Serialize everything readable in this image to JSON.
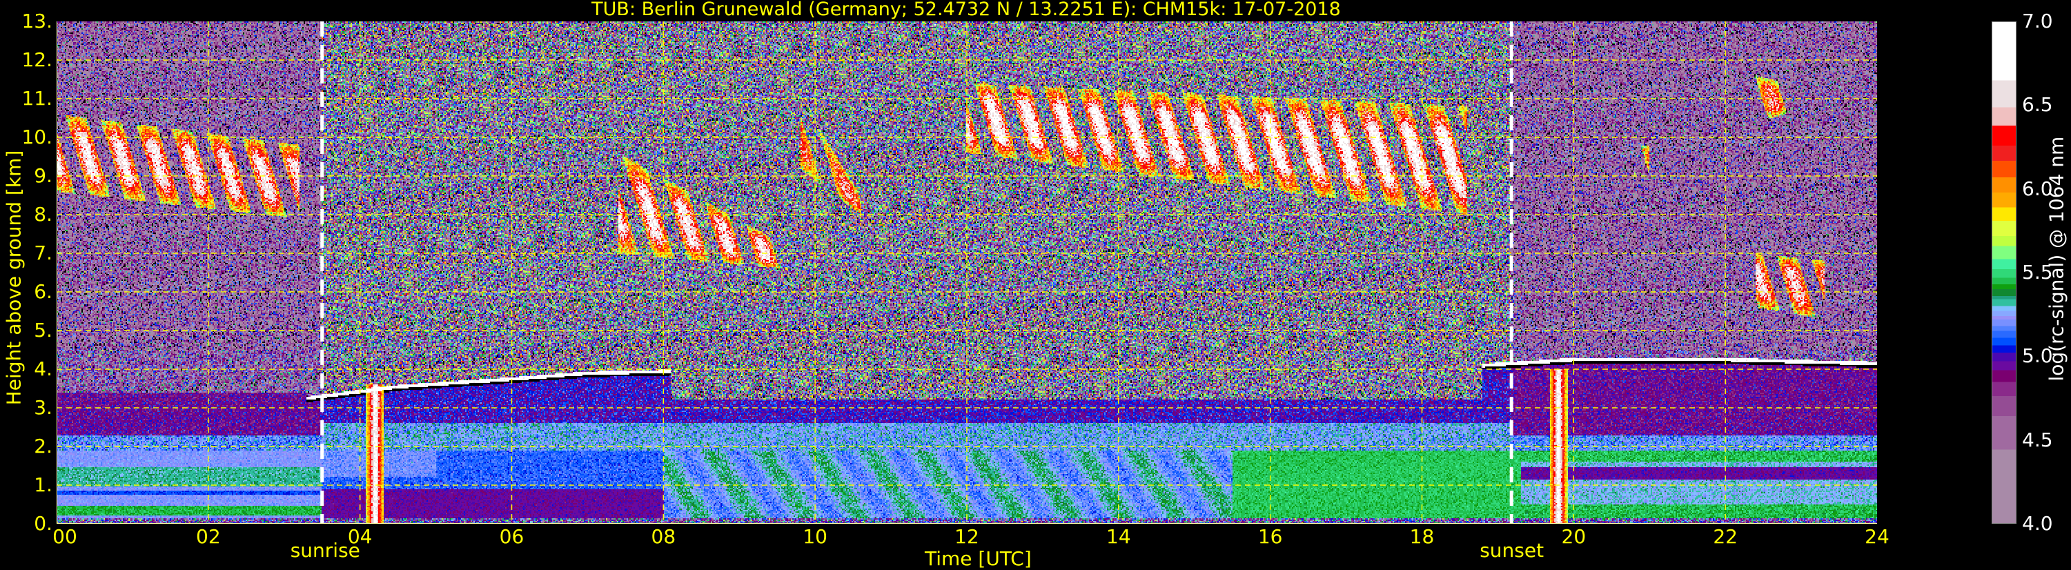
{
  "chart_data": {
    "type": "heatmap",
    "title": "TUB: Berlin Grunewald (Germany; 52.4732 N / 13.2251 E):    CHM15k: 17-07-2018",
    "xlabel": "Time [UTC]",
    "ylabel": "Height above ground [km]",
    "xlim": [
      0,
      24
    ],
    "ylim": [
      0,
      13
    ],
    "x_ticks": [
      0,
      2,
      4,
      6,
      8,
      10,
      12,
      14,
      16,
      18,
      20,
      22,
      24
    ],
    "x_tick_labels": [
      "00",
      "02",
      "04",
      "06",
      "08",
      "10",
      "12",
      "14",
      "16",
      "18",
      "20",
      "22",
      "24"
    ],
    "y_ticks": [
      0,
      1,
      2,
      3,
      4,
      5,
      6,
      7,
      8,
      9,
      10,
      11,
      12,
      13
    ],
    "y_tick_labels": [
      "0.",
      "1.",
      "2.",
      "3.",
      "4.",
      "5.",
      "6.",
      "7.",
      "8.",
      "9.",
      "10.",
      "11.",
      "12.",
      "13."
    ],
    "grid": true,
    "grid_color": "#ffff00",
    "annotations": [
      {
        "label": "sunrise",
        "time": 3.5,
        "line_color": "#ffffff"
      },
      {
        "label": "sunset",
        "time": 19.18,
        "line_color": "#ffffff"
      }
    ],
    "colorbar": {
      "label": "log(rc-signal) @ 1064 nm",
      "range": [
        4.0,
        7.0
      ],
      "ticks": [
        4.0,
        4.5,
        5.0,
        5.5,
        6.0,
        6.5,
        7.0
      ],
      "tick_labels": [
        "4.0",
        "4.5",
        "5.0",
        "5.5",
        "6.0",
        "6.5",
        "7.0"
      ],
      "bounds": [
        4.0,
        4.44,
        4.64,
        4.76,
        4.845,
        4.915,
        4.97,
        5.02,
        5.065,
        5.11,
        5.15,
        5.18,
        5.22,
        5.24,
        5.27,
        5.3,
        5.34,
        5.36,
        5.4,
        5.43,
        5.47,
        5.52,
        5.58,
        5.66,
        5.72,
        5.81,
        5.89,
        5.98,
        6.07,
        6.17,
        6.26,
        6.38,
        6.49,
        6.65,
        7.0
      ],
      "colors": [
        "#a88aa8",
        "#a06aa0",
        "#944c94",
        "#8a2a8a",
        "#7a0070",
        "#6a0aa0",
        "#4a08b0",
        "#0010e0",
        "#0050ff",
        "#2a6aff",
        "#5080ff",
        "#7890ff",
        "#9890f8",
        "#88a8ff",
        "#80c0ff",
        "#30c0a0",
        "#20a080",
        "#108830",
        "#10a010",
        "#20c050",
        "#30d878",
        "#40f0a0",
        "#80ff80",
        "#c0ff40",
        "#e0ff40",
        "#ffe800",
        "#ffaa00",
        "#ff9000",
        "#ff5000",
        "#f02020",
        "#ff0000",
        "#f0c0c0",
        "#ece0e2",
        "#ffffff"
      ],
      "under_color": "#000000"
    },
    "aerosol_layer_top_km": [
      {
        "time": [
          3.3,
          4.5,
          6.0,
          7.0,
          8.1
        ],
        "height": [
          3.2,
          3.5,
          3.7,
          3.85,
          3.9
        ]
      },
      {
        "time": [
          18.8,
          20.0,
          22.0,
          24.0
        ],
        "height": [
          4.05,
          4.2,
          4.2,
          4.1
        ]
      }
    ],
    "cloud_layers": [
      {
        "time": [
          0.0,
          3.2
        ],
        "height_top": [
          10.6,
          9.8
        ],
        "height_base": [
          8.6,
          7.9
        ],
        "peak": 6.7
      },
      {
        "time": [
          7.4,
          9.6
        ],
        "height_top": [
          9.6,
          7.2
        ],
        "height_base": [
          7.0,
          6.6
        ],
        "peak": 6.7
      },
      {
        "time": [
          9.8,
          10.6
        ],
        "height_top": [
          11.0,
          8.5
        ],
        "height_base": [
          9.2,
          8.0
        ],
        "peak": 6.4
      },
      {
        "time": [
          12.0,
          18.6
        ],
        "height_top": [
          11.4,
          10.8
        ],
        "height_base": [
          9.6,
          8.0
        ],
        "peak": 6.8
      },
      {
        "time": [
          20.8,
          21.0
        ],
        "height_top": [
          9.8,
          9.8
        ],
        "height_base": [
          9.0,
          9.0
        ],
        "peak": 6.2
      },
      {
        "time": [
          22.4,
          23.3
        ],
        "height_top": [
          7.0,
          6.8
        ],
        "height_base": [
          5.6,
          5.3
        ],
        "peak": 6.6
      },
      {
        "time": [
          22.4,
          22.8
        ],
        "height_top": [
          11.6,
          11.4
        ],
        "height_base": [
          10.4,
          10.6
        ],
        "peak": 6.4
      }
    ],
    "precipitation_plumes": [
      {
        "time": 4.2,
        "height_top": 3.6,
        "peak": 6.8
      },
      {
        "time": 19.8,
        "height_top": 4.0,
        "peak": 6.8
      }
    ]
  }
}
